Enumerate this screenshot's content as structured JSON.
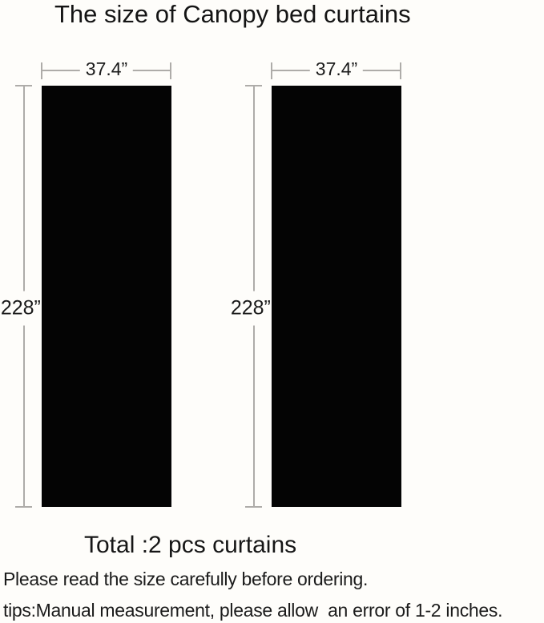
{
  "title": "The size of Canopy bed curtains",
  "colors": {
    "background": "#fefdfa",
    "curtain_fill": "#040404",
    "dimension_line": "#aeaca9",
    "text": "#1b1b1b"
  },
  "diagram": {
    "curtains": [
      {
        "name": "left-curtain",
        "width_label": "37.4”",
        "height_label": "228”"
      },
      {
        "name": "right-curtain",
        "width_label": "37.4”",
        "height_label": "228”"
      }
    ]
  },
  "footer": {
    "total": "Total :2 pcs curtains",
    "note1": "Please read the size carefully before ordering.",
    "note2": "tips:Manual measurement, please allow  an error of 1-2 inches."
  }
}
